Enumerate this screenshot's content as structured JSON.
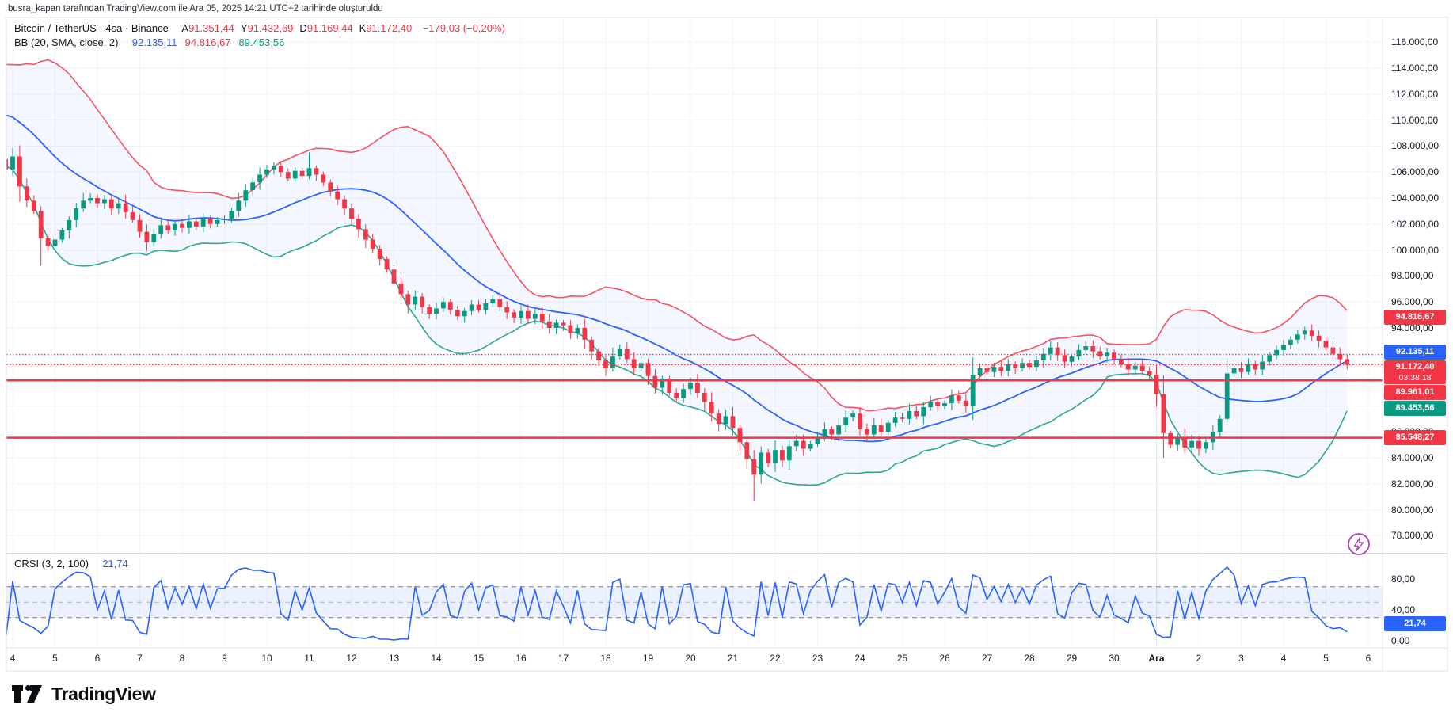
{
  "attribution": "busra_kapan tarafından TradingView.com ile Ara 05, 2025 14:21 UTC+2 tarihinde oluşturuldu",
  "ui": {
    "colors": {
      "red": "#F23645",
      "green": "#089981",
      "blue": "#2962FF",
      "purple": "#AB47BC",
      "grid": "#f0f3fa",
      "frame": "#e0e3eb",
      "text": "#131722"
    },
    "legend": {
      "title": "Bitcoin / TetherUS · 4sa · Binance",
      "ohlc": [
        {
          "k": "A",
          "v": "91.351,44"
        },
        {
          "k": "Y",
          "v": "91.432,69"
        },
        {
          "k": "D",
          "v": "91.169,44"
        },
        {
          "k": "K",
          "v": "91.172,40"
        }
      ],
      "change": "−179,03 (−0,20%)",
      "bb_label": "BB (20, SMA, close, 2)",
      "bb_values": [
        {
          "v": "92.135,11",
          "color": "#2962FF"
        },
        {
          "v": "94.816,67",
          "color": "#F23645"
        },
        {
          "v": "89.453,56",
          "color": "#089981"
        }
      ]
    },
    "crsi_legend": {
      "label": "CRSI (3, 2, 100)",
      "value": "21,74"
    },
    "badges": [
      {
        "label": "94.816,67",
        "price": 94816.67,
        "color": "#F23645"
      },
      {
        "label": "92.135,11",
        "price": 92135.11,
        "color": "#2962FF"
      },
      {
        "label": "91.172,40",
        "price": 91172.4,
        "color": "#F23645",
        "sub": "03:38:18"
      },
      {
        "label": "89.961,01",
        "price": 89961.01,
        "color": "#F23645"
      },
      {
        "label": "89.453,56",
        "price": 89453.56,
        "color": "#089981"
      },
      {
        "label": "85.548,27",
        "price": 85548.27,
        "color": "#F23645"
      }
    ],
    "crsi_badge": {
      "label": "21,74",
      "value": 21.74,
      "color": "#2962FF"
    },
    "logo_text": "TradingView"
  },
  "chart_data": {
    "type": "candlestick",
    "symbol": "Bitcoin / TetherUS",
    "interval": "4sa",
    "exchange": "Binance",
    "bars_per_day": 6,
    "price_ticks": [
      {
        "v": 116000,
        "label": "116.000,00"
      },
      {
        "v": 114000,
        "label": "114.000,00"
      },
      {
        "v": 112000,
        "label": "112.000,00"
      },
      {
        "v": 110000,
        "label": "110.000,00"
      },
      {
        "v": 108000,
        "label": "108.000,00"
      },
      {
        "v": 106000,
        "label": "106.000,00"
      },
      {
        "v": 104000,
        "label": "104.000,00"
      },
      {
        "v": 102000,
        "label": "102.000,00"
      },
      {
        "v": 100000,
        "label": "100.000,00"
      },
      {
        "v": 98000,
        "label": "98.000,00"
      },
      {
        "v": 96000,
        "label": "96.000,00"
      },
      {
        "v": 94000,
        "label": "94.000,00"
      },
      {
        "v": 92000,
        "label": "92.000,00"
      },
      {
        "v": 90000,
        "label": "90.000,00"
      },
      {
        "v": 88000,
        "label": "88.000,00"
      },
      {
        "v": 86000,
        "label": "86.000,00"
      },
      {
        "v": 84000,
        "label": "84.000,00"
      },
      {
        "v": 82000,
        "label": "82.000,00"
      },
      {
        "v": 80000,
        "label": "80.000,00"
      },
      {
        "v": 78000,
        "label": "78.000,00"
      }
    ],
    "x_day_labels": [
      {
        "d": 0,
        "label": "4"
      },
      {
        "d": 1,
        "label": "5"
      },
      {
        "d": 2,
        "label": "6"
      },
      {
        "d": 3,
        "label": "7"
      },
      {
        "d": 4,
        "label": "8"
      },
      {
        "d": 5,
        "label": "9"
      },
      {
        "d": 6,
        "label": "10"
      },
      {
        "d": 7,
        "label": "11"
      },
      {
        "d": 8,
        "label": "12"
      },
      {
        "d": 9,
        "label": "13"
      },
      {
        "d": 10,
        "label": "14"
      },
      {
        "d": 11,
        "label": "15"
      },
      {
        "d": 12,
        "label": "16"
      },
      {
        "d": 13,
        "label": "17"
      },
      {
        "d": 14,
        "label": "18"
      },
      {
        "d": 15,
        "label": "19"
      },
      {
        "d": 16,
        "label": "20"
      },
      {
        "d": 17,
        "label": "21"
      },
      {
        "d": 18,
        "label": "22"
      },
      {
        "d": 19,
        "label": "23"
      },
      {
        "d": 20,
        "label": "24"
      },
      {
        "d": 21,
        "label": "25"
      },
      {
        "d": 22,
        "label": "26"
      },
      {
        "d": 23,
        "label": "27"
      },
      {
        "d": 24,
        "label": "28"
      },
      {
        "d": 25,
        "label": "29"
      },
      {
        "d": 26,
        "label": "30"
      },
      {
        "d": 27,
        "label": "Ara",
        "month": true
      },
      {
        "d": 28,
        "label": "2"
      },
      {
        "d": 29,
        "label": "3"
      },
      {
        "d": 30,
        "label": "4"
      },
      {
        "d": 31,
        "label": "5"
      },
      {
        "d": 32,
        "label": "6"
      }
    ],
    "closes_k_prehistory": [
      113.1,
      112.6,
      112.9,
      112.2,
      111.8,
      112.1,
      111.4,
      111.0,
      111.3,
      110.6,
      110.2,
      110.5,
      109.8,
      109.4,
      109.0,
      108.4,
      107.8,
      107.0,
      106.2
    ],
    "closes_k": [
      107.2,
      104.9,
      103.8,
      103.0,
      100.9,
      100.3,
      100.8,
      101.5,
      102.3,
      103.2,
      103.8,
      104.0,
      103.6,
      103.9,
      103.2,
      103.6,
      102.9,
      102.3,
      101.4,
      100.6,
      101.2,
      101.9,
      101.5,
      102.0,
      101.7,
      102.2,
      101.8,
      102.4,
      102.0,
      102.3,
      102.4,
      103.0,
      103.8,
      104.6,
      105.2,
      105.8,
      106.2,
      106.5,
      106.0,
      105.5,
      106.1,
      105.7,
      106.3,
      105.8,
      105.2,
      104.5,
      103.9,
      103.2,
      102.4,
      101.6,
      100.8,
      100.1,
      99.3,
      98.5,
      97.4,
      96.6,
      95.8,
      96.4,
      95.6,
      95.1,
      95.5,
      96.0,
      95.4,
      94.9,
      95.3,
      95.8,
      95.4,
      95.9,
      96.2,
      95.6,
      95.2,
      94.8,
      95.3,
      94.7,
      95.1,
      94.5,
      94.0,
      94.4,
      94.2,
      93.6,
      94.0,
      93.1,
      92.2,
      91.5,
      90.9,
      91.8,
      92.4,
      91.6,
      90.9,
      91.3,
      90.3,
      89.4,
      90.1,
      89.0,
      88.6,
      89.3,
      89.8,
      89.0,
      88.3,
      87.4,
      86.6,
      87.2,
      86.3,
      85.2,
      83.9,
      82.7,
      84.4,
      83.6,
      84.6,
      83.8,
      84.9,
      85.3,
      84.7,
      85.1,
      85.6,
      86.2,
      85.8,
      86.5,
      87.1,
      87.4,
      86.2,
      85.8,
      86.5,
      86.0,
      86.7,
      87.1,
      87.0,
      87.6,
      87.2,
      87.9,
      88.3,
      88.0,
      88.2,
      88.8,
      88.4,
      88.0,
      90.4,
      90.9,
      90.6,
      91.0,
      90.7,
      91.2,
      90.9,
      91.3,
      91.0,
      91.5,
      92.0,
      92.5,
      91.9,
      91.4,
      91.8,
      92.3,
      92.6,
      92.2,
      91.8,
      92.1,
      91.6,
      91.2,
      90.8,
      91.1,
      90.7,
      90.4,
      88.9,
      85.9,
      85.0,
      85.6,
      84.8,
      85.3,
      84.7,
      85.2,
      86.0,
      87.0,
      90.5,
      90.9,
      90.6,
      91.2,
      90.8,
      91.4,
      91.9,
      92.3,
      92.7,
      93.1,
      93.5,
      93.8,
      93.4,
      93.0,
      92.5,
      92.0,
      91.6,
      91.172
    ],
    "high_overrides_k": {
      "42": 107.5,
      "152": 93.05
    },
    "low_overrides_k": {
      "4": 98.8,
      "19": 99.9,
      "105": 80.7,
      "163": 84.0,
      "167": 84.3
    },
    "bollinger": {
      "length": 20,
      "mult": 2,
      "basis_last": "92.135,11",
      "upper_last": "94.816,67",
      "lower_last": "89.453,56"
    },
    "levels": [
      {
        "price": 89961.01,
        "style": "solid"
      },
      {
        "price": 85548.27,
        "style": "solid"
      },
      {
        "price": 91950,
        "style": "dotted"
      },
      {
        "price": 91172.4,
        "style": "dotted"
      }
    ],
    "last": {
      "price": 91172.4,
      "label": "91.172,40",
      "countdown": "03:38:18",
      "change": "−179,03 (−0,20%)"
    },
    "crsi": {
      "label": "CRSI (3, 2, 100)",
      "last_value": 21.74,
      "last_label": "21,74",
      "bands": {
        "upper": 70,
        "middle": 50,
        "lower": 30
      },
      "axis_ticks": [
        {
          "v": 80,
          "label": "80,00"
        },
        {
          "v": 40,
          "label": "40,00"
        },
        {
          "v": 0,
          "label": "0,00"
        }
      ]
    },
    "legend_position": "top-left",
    "grid": "on"
  }
}
